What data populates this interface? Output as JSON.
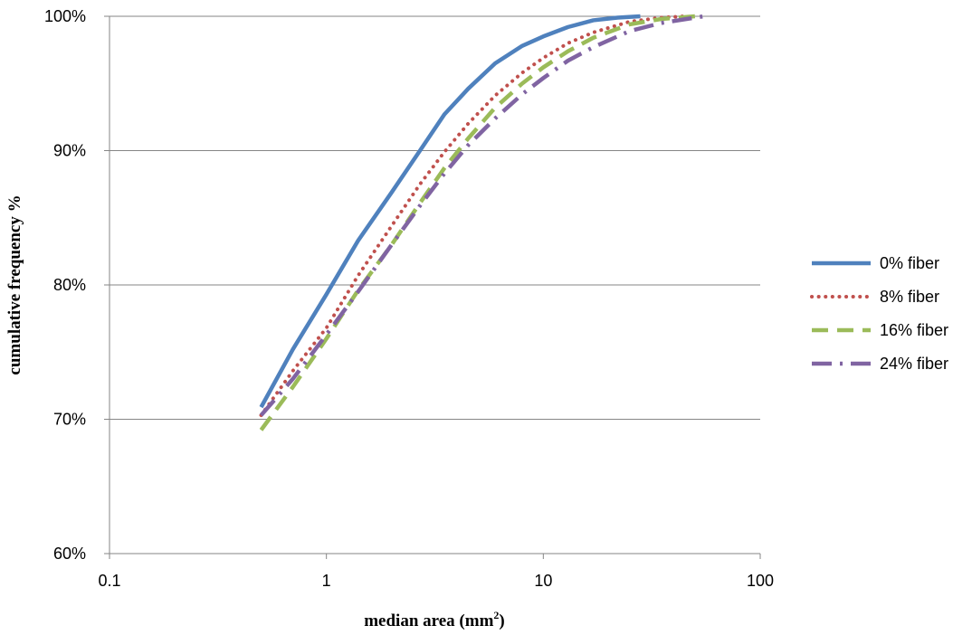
{
  "chart_data": {
    "type": "line",
    "title": "",
    "xlabel": "median area (mm",
    "xlabel_sup": "2",
    "xlabel_close": ")",
    "ylabel": "cumulative frequency %",
    "x_scale": "log",
    "xlim": [
      0.1,
      100
    ],
    "ylim": [
      60,
      100
    ],
    "x_ticks": [
      0.1,
      1,
      10,
      100
    ],
    "x_tick_labels": [
      "0.1",
      "1",
      "10",
      "100"
    ],
    "y_ticks": [
      60,
      70,
      80,
      90,
      100
    ],
    "y_tick_labels": [
      "60%",
      "70%",
      "80%",
      "90%",
      "100%"
    ],
    "grid": "horizontal",
    "legend_position": "right",
    "series": [
      {
        "name": "0% fiber",
        "color": "#4f81bd",
        "style": "solid",
        "x": [
          0.5,
          0.7,
          1.0,
          1.4,
          2.0,
          2.7,
          3.5,
          4.5,
          6.0,
          8.0,
          10.0,
          13.0,
          17.0,
          22.0,
          28.0
        ],
        "y": [
          70.9,
          75.2,
          79.3,
          83.3,
          86.9,
          90.0,
          92.7,
          94.6,
          96.5,
          97.8,
          98.5,
          99.2,
          99.7,
          99.9,
          100.0
        ]
      },
      {
        "name": "8% fiber",
        "color": "#c0504d",
        "style": "dotted",
        "x": [
          0.5,
          0.7,
          1.0,
          1.4,
          2.0,
          2.7,
          3.5,
          4.5,
          6.0,
          8.0,
          10.0,
          13.0,
          17.0,
          25.0,
          35.0,
          45.0
        ],
        "y": [
          70.3,
          73.6,
          76.8,
          80.7,
          84.4,
          87.5,
          89.9,
          92.0,
          94.1,
          95.8,
          96.9,
          98.0,
          98.8,
          99.6,
          99.9,
          100.0
        ]
      },
      {
        "name": "16% fiber",
        "color": "#9bbb59",
        "style": "dashed",
        "x": [
          0.5,
          0.7,
          1.0,
          1.4,
          2.0,
          2.7,
          3.5,
          4.5,
          6.0,
          8.0,
          10.0,
          13.0,
          17.0,
          25.0,
          35.0,
          50.0
        ],
        "y": [
          69.2,
          72.4,
          76.0,
          79.6,
          83.0,
          86.1,
          88.7,
          90.9,
          93.2,
          95.0,
          96.2,
          97.4,
          98.4,
          99.4,
          99.8,
          100.0
        ]
      },
      {
        "name": "24% fiber",
        "color": "#8064a2",
        "style": "dash-dot",
        "x": [
          0.5,
          0.7,
          1.0,
          1.4,
          2.0,
          2.7,
          3.5,
          4.5,
          6.0,
          8.0,
          10.0,
          13.0,
          17.0,
          25.0,
          35.0,
          55.0
        ],
        "y": [
          70.3,
          73.0,
          76.3,
          79.5,
          83.0,
          85.9,
          88.3,
          90.4,
          92.4,
          94.2,
          95.4,
          96.7,
          97.7,
          98.9,
          99.5,
          100.0
        ]
      }
    ]
  }
}
